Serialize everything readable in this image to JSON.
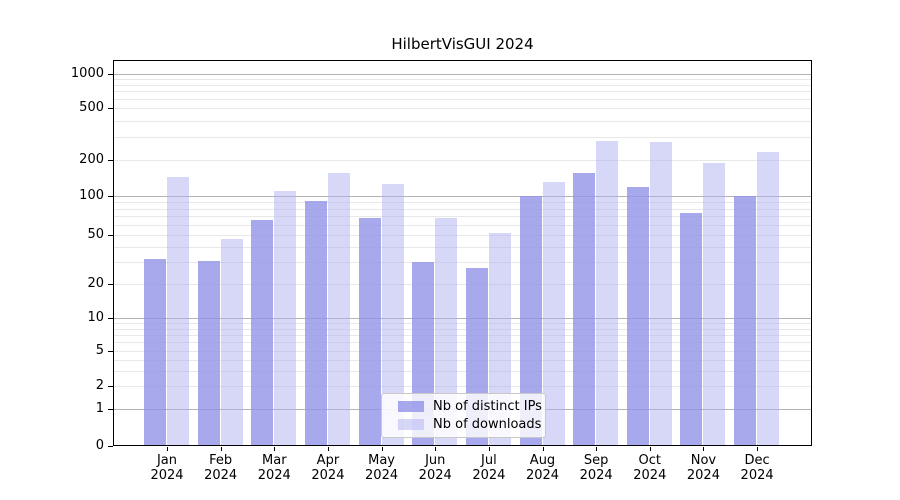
{
  "chart_data": {
    "type": "bar",
    "title": "HilbertVisGUI 2024",
    "x_months": [
      "Jan",
      "Feb",
      "Mar",
      "Apr",
      "May",
      "Jun",
      "Jul",
      "Aug",
      "Sep",
      "Oct",
      "Nov",
      "Dec"
    ],
    "x_year": "2024",
    "series": [
      {
        "name": "Nb of distinct IPs",
        "color": "rgba(146,146,233,0.8)",
        "effective_color": "#a8a8ee",
        "values": [
          32,
          31,
          65,
          92,
          68,
          30,
          27,
          100,
          155,
          120,
          74,
          100
        ]
      },
      {
        "name": "Nb of downloads",
        "color": "rgba(175,175,241,0.5)",
        "effective_color": "#d7d7f8",
        "values": [
          145,
          46,
          110,
          155,
          125,
          68,
          52,
          130,
          280,
          275,
          190,
          230
        ]
      }
    ],
    "y_axis": {
      "scale": "symlog",
      "range": [
        0,
        1300
      ],
      "grid": true,
      "major_gridlines": [
        1,
        10,
        100,
        1000
      ],
      "ticks": [
        {
          "label": "0",
          "value": 0,
          "y": 446
        },
        {
          "label": "1",
          "value": 1,
          "y": 409
        },
        {
          "label": "2",
          "value": 2,
          "y": 386
        },
        {
          "label": "5",
          "value": 5,
          "y": 351
        },
        {
          "label": "10",
          "value": 10,
          "y": 318
        },
        {
          "label": "20",
          "value": 20,
          "y": 284
        },
        {
          "label": "50",
          "value": 50,
          "y": 235
        },
        {
          "label": "100",
          "value": 100,
          "y": 196
        },
        {
          "label": "200",
          "value": 200,
          "y": 160
        },
        {
          "label": "500",
          "value": 500,
          "y": 108
        },
        {
          "label": "1000",
          "value": 1000,
          "y": 74
        }
      ]
    },
    "legend_position": "lower center",
    "colors": {
      "grid_major": "#b3b3b3",
      "grid_minor": "#e8e8e8",
      "spine": "#000000",
      "background": "#ffffff"
    }
  }
}
